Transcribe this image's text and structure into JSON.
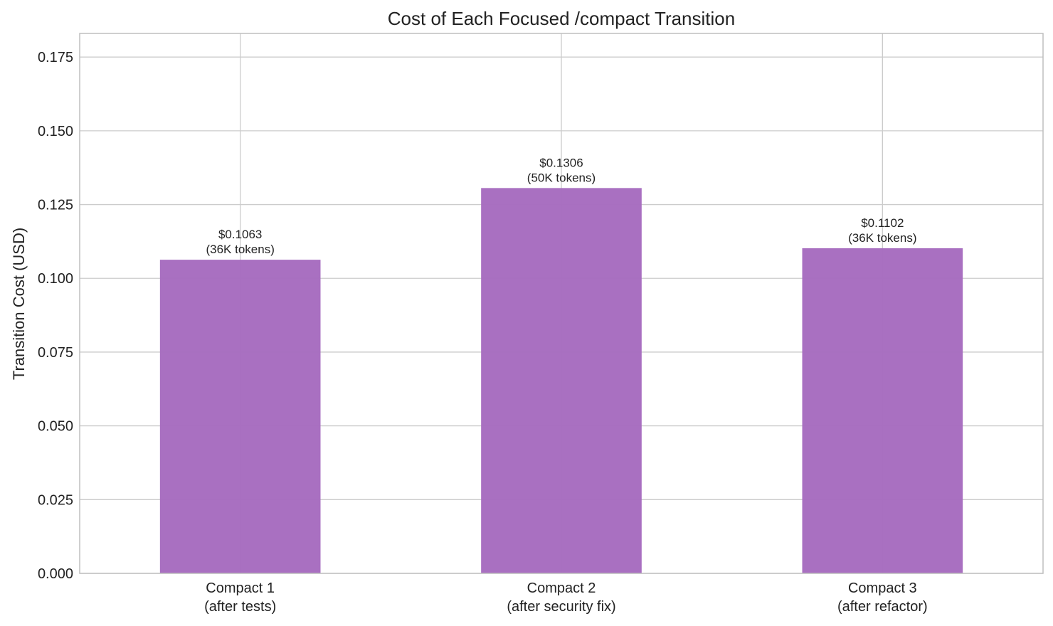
{
  "chart_data": {
    "type": "bar",
    "title": "Cost of Each Focused /compact Transition",
    "xlabel": "",
    "ylabel": "Transition Cost (USD)",
    "ylim": [
      0,
      0.183
    ],
    "yticks": [
      0.0,
      0.025,
      0.05,
      0.075,
      0.1,
      0.125,
      0.15,
      0.175
    ],
    "ytick_labels": [
      "0.000",
      "0.025",
      "0.050",
      "0.075",
      "0.100",
      "0.125",
      "0.150",
      "0.175"
    ],
    "categories": [
      [
        "Compact 1",
        "(after tests)"
      ],
      [
        "Compact 2",
        "(after security fix)"
      ],
      [
        "Compact 3",
        "(after refactor)"
      ]
    ],
    "values": [
      0.1063,
      0.1306,
      0.1102
    ],
    "data_labels": [
      [
        "$0.1063",
        "(36K tokens)"
      ],
      [
        "$0.1306",
        "(50K tokens)"
      ],
      [
        "$0.1102",
        "(36K tokens)"
      ]
    ],
    "bar_color": "#a66bbf",
    "grid": true
  }
}
